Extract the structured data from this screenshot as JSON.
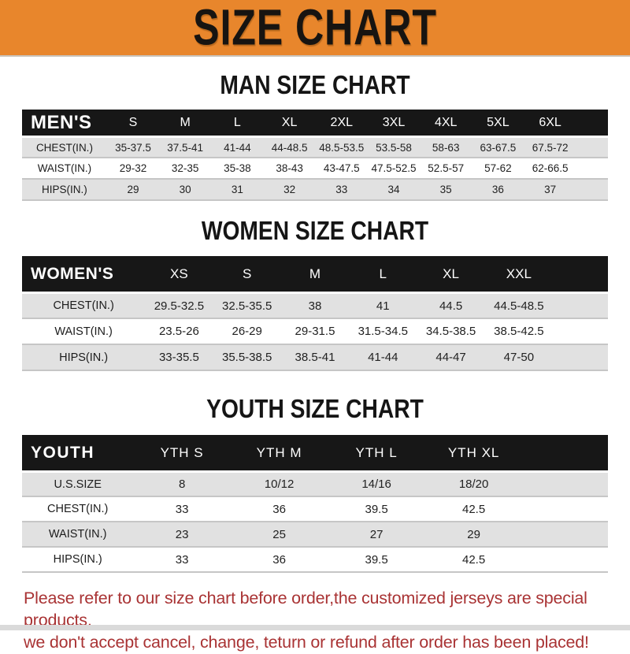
{
  "banner": {
    "title": "SIZE CHART"
  },
  "sections": [
    {
      "title": "MAN SIZE CHART",
      "label": "MEN'S",
      "columns": [
        "S",
        "M",
        "L",
        "XL",
        "2XL",
        "3XL",
        "4XL",
        "5XL",
        "6XL"
      ],
      "rows": [
        {
          "label": "CHEST(IN.)",
          "values": [
            "35-37.5",
            "37.5-41",
            "41-44",
            "44-48.5",
            "48.5-53.5",
            "53.5-58",
            "58-63",
            "63-67.5",
            "67.5-72"
          ]
        },
        {
          "label": "WAIST(IN.)",
          "values": [
            "29-32",
            "32-35",
            "35-38",
            "38-43",
            "43-47.5",
            "47.5-52.5",
            "52.5-57",
            "57-62",
            "62-66.5"
          ]
        },
        {
          "label": "HIPS(IN.)",
          "values": [
            "29",
            "30",
            "31",
            "32",
            "33",
            "34",
            "35",
            "36",
            "37"
          ]
        }
      ]
    },
    {
      "title": "WOMEN SIZE CHART",
      "label": "WOMEN'S",
      "columns": [
        "XS",
        "S",
        "M",
        "L",
        "XL",
        "XXL"
      ],
      "rows": [
        {
          "label": "CHEST(IN.)",
          "values": [
            "29.5-32.5",
            "32.5-35.5",
            "38",
            "41",
            "44.5",
            "44.5-48.5"
          ]
        },
        {
          "label": "WAIST(IN.)",
          "values": [
            "23.5-26",
            "26-29",
            "29-31.5",
            "31.5-34.5",
            "34.5-38.5",
            "38.5-42.5"
          ]
        },
        {
          "label": "HIPS(IN.)",
          "values": [
            "33-35.5",
            "35.5-38.5",
            "38.5-41",
            "41-44",
            "44-47",
            "47-50"
          ]
        }
      ]
    },
    {
      "title": "YOUTH SIZE CHART",
      "label": "YOUTH",
      "columns": [
        "YTH S",
        "YTH M",
        "YTH L",
        "YTH XL"
      ],
      "rows": [
        {
          "label": "U.S.SIZE",
          "values": [
            "8",
            "10/12",
            "14/16",
            "18/20"
          ]
        },
        {
          "label": "CHEST(IN.)",
          "values": [
            "33",
            "36",
            "39.5",
            "42.5"
          ]
        },
        {
          "label": "WAIST(IN.)",
          "values": [
            "23",
            "25",
            "27",
            "29"
          ]
        },
        {
          "label": "HIPS(IN.)",
          "values": [
            "33",
            "36",
            "39.5",
            "42.5"
          ]
        }
      ]
    }
  ],
  "footer": {
    "line1": "Please refer to our size chart before order,the customized jerseys are special products,",
    "line2": "we don't accept cancel, change, teturn or refund after order has been placed!"
  },
  "colors": {
    "banner_bg": "#E8862C",
    "table_header_bg": "#171717",
    "row_alt_bg": "#E1E1E1",
    "footer_text": "#A93334"
  }
}
